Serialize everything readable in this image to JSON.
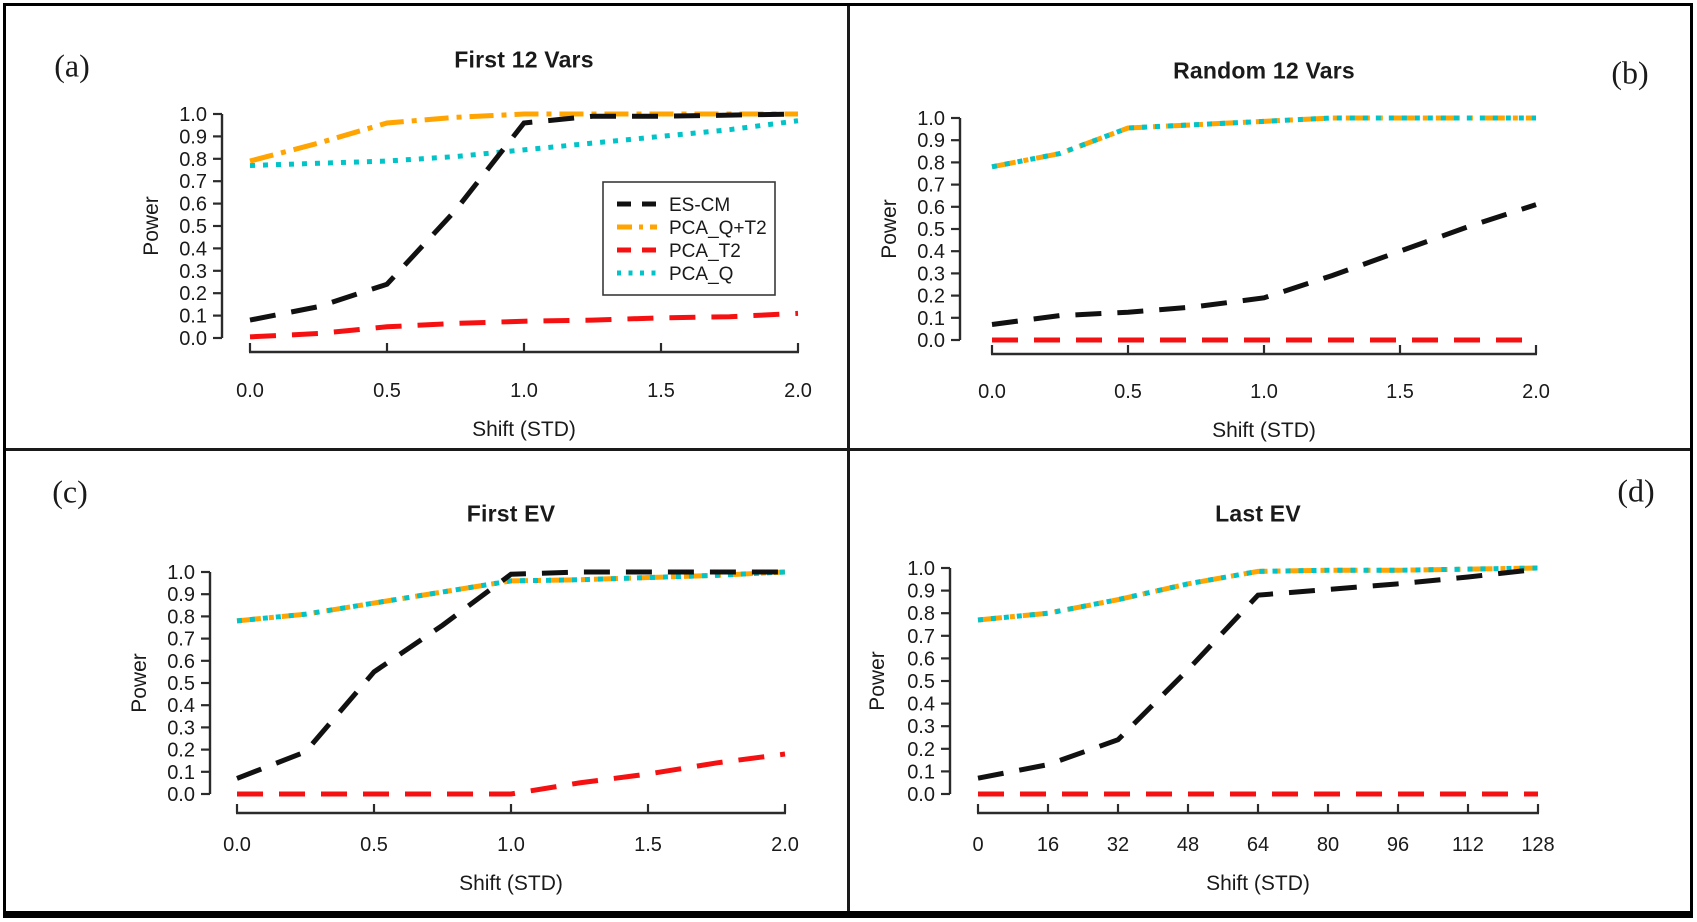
{
  "figure": {
    "background": "#ffffff",
    "border_color": "#000000"
  },
  "legend": {
    "entries": [
      "ES-CM",
      "PCA_Q+T2",
      "PCA_T2",
      "PCA_Q"
    ]
  },
  "chart_data": [
    {
      "id": "a",
      "type": "line",
      "corner_label": "(a)",
      "title": "First 12 Vars",
      "xlabel": "Shift (STD)",
      "ylabel": "Power",
      "xlim": [
        0,
        2
      ],
      "ylim": [
        0,
        1
      ],
      "grid": false,
      "has_legend": true,
      "legend_position": "right-middle",
      "x": [
        0,
        0.25,
        0.5,
        0.75,
        1,
        1.25,
        1.5,
        1.75,
        2
      ],
      "xticks": {
        "values": [
          0,
          0.5,
          1,
          1.5,
          2
        ],
        "labels": [
          "0.0",
          "0.5",
          "1.0",
          "1.5",
          "2.0"
        ]
      },
      "yticks": {
        "values": [
          0,
          0.1,
          0.2,
          0.3,
          0.4,
          0.5,
          0.6,
          0.7,
          0.8,
          0.9,
          1.0
        ],
        "labels": [
          "0.0",
          "0.1",
          "0.2",
          "0.3",
          "0.4",
          "0.5",
          "0.6",
          "0.7",
          "0.8",
          "0.9",
          "1.0"
        ]
      },
      "series": [
        {
          "name": "PCA_Q",
          "color": "#00c4c8",
          "dash": "dotted",
          "values": [
            0.77,
            0.78,
            0.79,
            0.81,
            0.84,
            0.87,
            0.9,
            0.93,
            0.97
          ]
        },
        {
          "name": "PCA_T2",
          "color": "#f51111",
          "dash": "dashed",
          "values": [
            0.005,
            0.02,
            0.05,
            0.065,
            0.075,
            0.08,
            0.09,
            0.095,
            0.11
          ]
        },
        {
          "name": "PCA_Q+T2",
          "color": "#ffa400",
          "dash": "dashdot",
          "values": [
            0.79,
            0.87,
            0.96,
            0.985,
            1.0,
            1.0,
            1.0,
            1.0,
            1.0
          ]
        },
        {
          "name": "ES-CM",
          "color": "#111111",
          "dash": "dashed",
          "values": [
            0.08,
            0.14,
            0.24,
            0.57,
            0.96,
            0.99,
            0.99,
            0.995,
            1.0
          ]
        }
      ]
    },
    {
      "id": "b",
      "type": "line",
      "corner_label": "(b)",
      "title": "Random 12 Vars",
      "xlabel": "Shift (STD)",
      "ylabel": "Power",
      "xlim": [
        0,
        2
      ],
      "ylim": [
        0,
        1
      ],
      "grid": false,
      "has_legend": false,
      "x": [
        0,
        0.25,
        0.5,
        0.75,
        1,
        1.25,
        1.5,
        1.75,
        2
      ],
      "xticks": {
        "values": [
          0,
          0.5,
          1,
          1.5,
          2
        ],
        "labels": [
          "0.0",
          "0.5",
          "1.0",
          "1.5",
          "2.0"
        ]
      },
      "yticks": {
        "values": [
          0,
          0.1,
          0.2,
          0.3,
          0.4,
          0.5,
          0.6,
          0.7,
          0.8,
          0.9,
          1.0
        ],
        "labels": [
          "0.0",
          "0.1",
          "0.2",
          "0.3",
          "0.4",
          "0.5",
          "0.6",
          "0.7",
          "0.8",
          "0.9",
          "1.0"
        ]
      },
      "series": [
        {
          "name": "PCA_Q+T2",
          "color": "#ffa400",
          "dash": "dashdot",
          "values": [
            0.78,
            0.84,
            0.955,
            0.97,
            0.985,
            1.0,
            1.0,
            1.0,
            1.0
          ]
        },
        {
          "name": "PCA_Q",
          "color": "#00c4c8",
          "dash": "dotted",
          "values": [
            0.78,
            0.84,
            0.955,
            0.97,
            0.985,
            1.0,
            1.0,
            1.0,
            1.0
          ]
        },
        {
          "name": "ES-CM",
          "color": "#111111",
          "dash": "dashed",
          "values": [
            0.07,
            0.11,
            0.125,
            0.15,
            0.19,
            0.29,
            0.4,
            0.51,
            0.61
          ]
        },
        {
          "name": "PCA_T2",
          "color": "#f51111",
          "dash": "dashed",
          "values": [
            0.0,
            0.0,
            0.0,
            0.0,
            0.0,
            0.0,
            0.0,
            0.0,
            0.0
          ]
        }
      ]
    },
    {
      "id": "c",
      "type": "line",
      "corner_label": "(c)",
      "title": "First EV",
      "xlabel": "Shift (STD)",
      "ylabel": "Power",
      "xlim": [
        0,
        2
      ],
      "ylim": [
        0,
        1
      ],
      "grid": false,
      "has_legend": false,
      "x": [
        0,
        0.25,
        0.5,
        0.75,
        1,
        1.25,
        1.5,
        1.75,
        2
      ],
      "xticks": {
        "values": [
          0,
          0.5,
          1,
          1.5,
          2
        ],
        "labels": [
          "0.0",
          "0.5",
          "1.0",
          "1.5",
          "2.0"
        ]
      },
      "yticks": {
        "values": [
          0,
          0.1,
          0.2,
          0.3,
          0.4,
          0.5,
          0.6,
          0.7,
          0.8,
          0.9,
          1.0
        ],
        "labels": [
          "0.0",
          "0.1",
          "0.2",
          "0.3",
          "0.4",
          "0.5",
          "0.6",
          "0.7",
          "0.8",
          "0.9",
          "1.0"
        ]
      },
      "series": [
        {
          "name": "PCA_Q+T2",
          "color": "#ffa400",
          "dash": "dashdot",
          "values": [
            0.78,
            0.81,
            0.86,
            0.91,
            0.96,
            0.965,
            0.975,
            0.985,
            1.0
          ]
        },
        {
          "name": "PCA_Q",
          "color": "#00c4c8",
          "dash": "dotted",
          "values": [
            0.78,
            0.81,
            0.86,
            0.91,
            0.96,
            0.965,
            0.975,
            0.985,
            1.0
          ]
        },
        {
          "name": "ES-CM",
          "color": "#111111",
          "dash": "dashed",
          "values": [
            0.07,
            0.19,
            0.55,
            0.76,
            0.99,
            1.0,
            1.0,
            1.0,
            1.0
          ]
        },
        {
          "name": "PCA_T2",
          "color": "#f51111",
          "dash": "dashed",
          "values": [
            0.0,
            0.0,
            0.0,
            0.0,
            0.0,
            0.05,
            0.09,
            0.14,
            0.18
          ]
        }
      ]
    },
    {
      "id": "d",
      "type": "line",
      "corner_label": "(d)",
      "title": "Last EV",
      "xlabel": "Shift (STD)",
      "ylabel": "Power",
      "xlim": [
        0,
        128
      ],
      "ylim": [
        0,
        1
      ],
      "grid": false,
      "has_legend": false,
      "x": [
        0,
        16,
        32,
        48,
        64,
        80,
        96,
        112,
        128
      ],
      "xticks": {
        "values": [
          0,
          16,
          32,
          48,
          64,
          80,
          96,
          112,
          128
        ],
        "labels": [
          "0",
          "16",
          "32",
          "48",
          "64",
          "80",
          "96",
          "112",
          "128"
        ]
      },
      "yticks": {
        "values": [
          0,
          0.1,
          0.2,
          0.3,
          0.4,
          0.5,
          0.6,
          0.7,
          0.8,
          0.9,
          1.0
        ],
        "labels": [
          "0.0",
          "0.1",
          "0.2",
          "0.3",
          "0.4",
          "0.5",
          "0.6",
          "0.7",
          "0.8",
          "0.9",
          "1.0"
        ]
      },
      "series": [
        {
          "name": "PCA_Q+T2",
          "color": "#ffa400",
          "dash": "dashdot",
          "values": [
            0.77,
            0.8,
            0.86,
            0.93,
            0.985,
            0.99,
            0.99,
            0.995,
            1.0
          ]
        },
        {
          "name": "PCA_Q",
          "color": "#00c4c8",
          "dash": "dotted",
          "values": [
            0.77,
            0.8,
            0.86,
            0.93,
            0.985,
            0.99,
            0.99,
            0.995,
            1.0
          ]
        },
        {
          "name": "ES-CM",
          "color": "#111111",
          "dash": "dashed",
          "values": [
            0.07,
            0.13,
            0.24,
            0.55,
            0.88,
            0.905,
            0.93,
            0.96,
            0.995
          ]
        },
        {
          "name": "PCA_T2",
          "color": "#f51111",
          "dash": "dashed",
          "values": [
            0.0,
            0.0,
            0.0,
            0.0,
            0.0,
            0.0,
            0.0,
            0.0,
            0.0
          ]
        }
      ]
    }
  ]
}
